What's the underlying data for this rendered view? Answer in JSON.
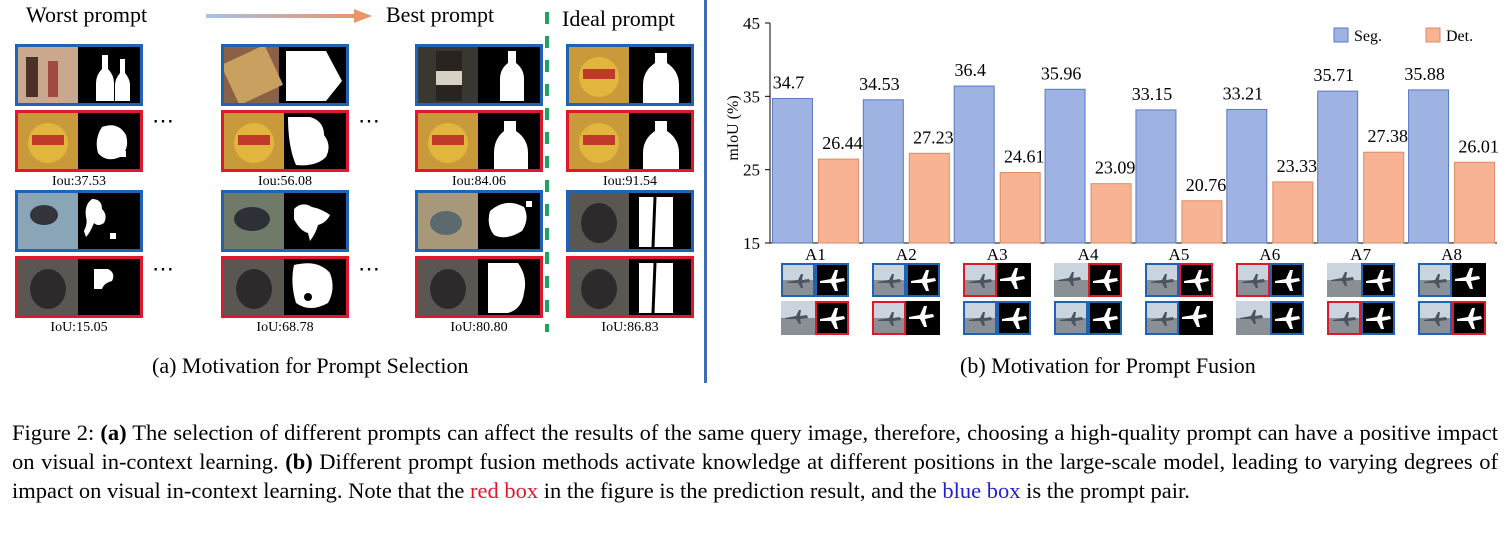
{
  "left_panel": {
    "worst_label": "Worst prompt",
    "best_label": "Best prompt",
    "ideal_label": "Ideal prompt",
    "ellipsis": "⋯",
    "row1_scores": [
      "Iou:37.53",
      "Iou:56.08",
      "Iou:84.06",
      "Iou:91.54"
    ],
    "row2_scores": [
      "IoU:15.05",
      "IoU:68.78",
      "IoU:80.80",
      "IoU:86.83"
    ],
    "caption": "(a) Motivation for Prompt Selection"
  },
  "right_panel": {
    "caption": "(b) Motivation for Prompt Fusion"
  },
  "chart_data": {
    "type": "bar",
    "categories": [
      "A1",
      "A2",
      "A3",
      "A4",
      "A5",
      "A6",
      "A7",
      "A8"
    ],
    "series": [
      {
        "name": "Seg.",
        "values": [
          34.7,
          34.53,
          36.4,
          35.96,
          33.15,
          33.21,
          35.71,
          35.88
        ],
        "labels": [
          "34.7",
          "34.53",
          "36.4",
          "35.96",
          "33.15",
          "33.21",
          "35.71",
          "35.88"
        ],
        "color": "#9fb3e3"
      },
      {
        "name": "Det.",
        "values": [
          26.44,
          27.23,
          24.61,
          23.09,
          20.76,
          23.33,
          27.38,
          26.01
        ],
        "labels": [
          "26.44",
          "27.23",
          "24.61",
          "23.09",
          "20.76",
          "23.33",
          "27.38",
          "26.01"
        ],
        "color": "#f7b394"
      }
    ],
    "ylabel": "mIoU  (%)",
    "ylim": [
      15,
      45
    ],
    "yticks": [
      "15",
      "25",
      "35",
      "45"
    ],
    "legend_position": "top-right",
    "grid": false
  },
  "figure_caption": {
    "label": "Figure 2:",
    "a_tag": "(a)",
    "part1": " The selection of different prompts can affect the results of the same query image, therefore, choosing a high-quality prompt can have a positive impact on visual in-context learning. ",
    "b_tag": "(b)",
    "part2": " Different prompt fusion methods activate knowledge at different positions in the large-scale model, leading to varying degrees of impact on visual in-context learning. Note that the ",
    "red_phrase": "red box",
    "part3": " in the figure is the prediction result, and the ",
    "blue_phrase": "blue box",
    "part4": " is the prompt pair."
  },
  "colors": {
    "blue_box": "#1f64b4",
    "red_box": "#e0182b",
    "divider_green": "#19a85a",
    "panel_divider": "#3d6fb0"
  }
}
